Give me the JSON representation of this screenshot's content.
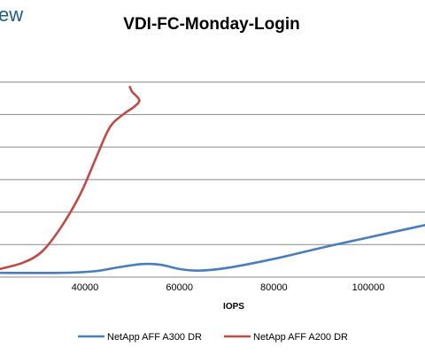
{
  "brand": {
    "text": "ew"
  },
  "colors": {
    "series_a300": "#4a7ebb",
    "series_a200": "#be4b48",
    "grid": "#888888",
    "brand": "#1f5f7a"
  },
  "chart_data": {
    "type": "line",
    "title": "VDI-FC-Monday-Login",
    "xlabel": "IOPS",
    "ylabel": "",
    "xlim": [
      22000,
      112000
    ],
    "ylim": [
      0,
      7
    ],
    "grid": true,
    "legend_position": "bottom",
    "x_ticks": [
      40000,
      60000,
      80000,
      100000
    ],
    "x_tick_labels": [
      "40000",
      "60000",
      "80000",
      "100000"
    ],
    "y_gridlines": [
      1,
      2,
      3,
      4,
      5,
      6
    ],
    "series": [
      {
        "name": "NetApp AFF A300 DR",
        "color": "#4a7ebb",
        "x": [
          22000,
          35000,
          42000,
          47000,
          52000,
          56000,
          60000,
          64000,
          70000,
          80000,
          90000,
          100000,
          112000
        ],
        "y": [
          0.13,
          0.13,
          0.18,
          0.3,
          0.4,
          0.38,
          0.25,
          0.2,
          0.28,
          0.56,
          0.9,
          1.22,
          1.6
        ]
      },
      {
        "name": "NetApp AFF A200 DR",
        "color": "#be4b48",
        "x": [
          22000,
          27000,
          31000,
          35000,
          39000,
          42000,
          44500,
          46000,
          48500,
          50500,
          51500,
          50000,
          49500
        ],
        "y": [
          0.25,
          0.45,
          0.8,
          1.55,
          2.55,
          3.55,
          4.4,
          4.75,
          5.05,
          5.25,
          5.45,
          5.7,
          5.85
        ]
      }
    ],
    "plot_area_border": true
  }
}
